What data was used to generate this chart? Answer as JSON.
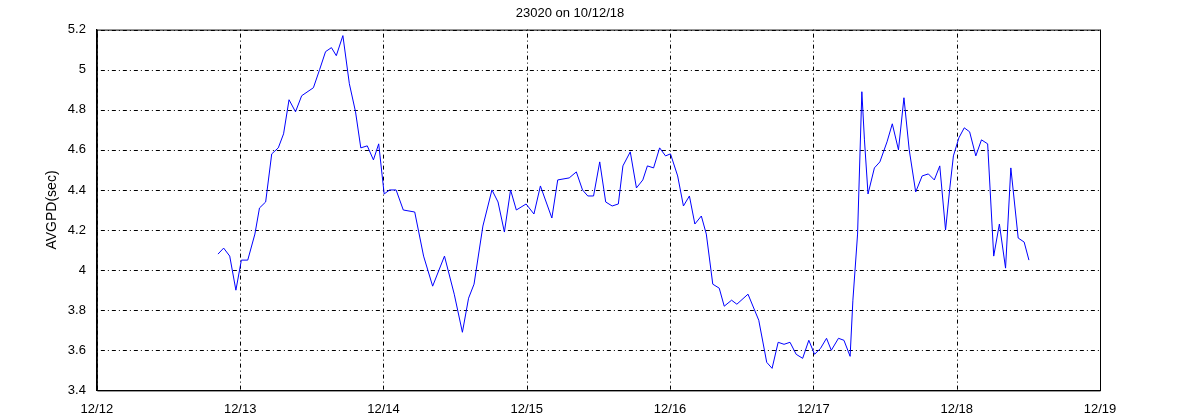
{
  "chart_data": {
    "type": "line",
    "title": "23020 on 10/12/18",
    "ylabel": "AVGPD(sec)",
    "xlim": [
      "--12-12",
      "--12-19"
    ],
    "xticks": [
      {
        "value": "--12-12",
        "label": "12/12"
      },
      {
        "value": "--12-13",
        "label": "12/13"
      },
      {
        "value": "--12-14",
        "label": "12/14"
      },
      {
        "value": "--12-15",
        "label": "12/15"
      },
      {
        "value": "--12-16",
        "label": "12/16"
      },
      {
        "value": "--12-17",
        "label": "12/17"
      },
      {
        "value": "--12-18",
        "label": "12/18"
      },
      {
        "value": "--12-19",
        "label": "12/19"
      }
    ],
    "ylim": [
      3.4,
      5.2
    ],
    "yticks": [
      3.4,
      3.6,
      3.8,
      4,
      4.2,
      4.4,
      4.6,
      4.8,
      5,
      5.2
    ],
    "grid": true,
    "marker": "none",
    "line_style": "solid",
    "series": [
      {
        "color": "#0000ff",
        "x": [
          "--12-12T20:17",
          "--12-12T21:14",
          "--12-12T22:15",
          "--12-12T23:17",
          "--12-13T00:12",
          "--12-13T01:16",
          "--12-13T02:28",
          "--12-13T03:14",
          "--12-13T04:16",
          "--12-13T05:17",
          "--12-13T06:23",
          "--12-13T07:16",
          "--12-13T08:11",
          "--12-13T09:16",
          "--12-13T10:18",
          "--12-13T12:16",
          "--12-13T13:18",
          "--12-13T14:18",
          "--12-13T15:17",
          "--12-13T16:06",
          "--12-13T17:12",
          "--12-13T18:17",
          "--12-13T19:19",
          "--12-13T20:12",
          "--12-13T21:17",
          "--12-13T22:19",
          "--12-13T23:12",
          "--12-14T00:07",
          "--12-14T01:02",
          "--12-14T02:07",
          "--12-14T03:19",
          "--12-14T05:14",
          "--12-14T06:43",
          "--12-14T08:14",
          "--12-14T10:13",
          "--12-14T11:51",
          "--12-14T13:13",
          "--12-14T14:15",
          "--12-14T15:10",
          "--12-14T16:39",
          "--12-14T18:10",
          "--12-14T19:11",
          "--12-14T20:15",
          "--12-14T21:17",
          "--12-14T22:15",
          "--12-14T23:53",
          "--12-15T01:12",
          "--12-15T02:17",
          "--12-15T04:12",
          "--12-15T05:11",
          "--12-15T07:06",
          "--12-15T08:18",
          "--12-15T09:20",
          "--12-15T10:13",
          "--12-15T11:11",
          "--12-15T12:13",
          "--12-15T13:13",
          "--12-15T14:18",
          "--12-15T15:20",
          "--12-15T16:06",
          "--12-15T17:20",
          "--12-15T18:22",
          "--12-15T19:26",
          "--12-15T20:12",
          "--12-15T21:14",
          "--12-15T22:15",
          "--12-15T23:14",
          "--12-16T00:04",
          "--12-16T01:16",
          "--12-16T02:14",
          "--12-16T03:14",
          "--12-16T04:09",
          "--12-16T05:14",
          "--12-16T06:04",
          "--12-16T07:09",
          "--12-16T08:14",
          "--12-16T09:04",
          "--12-16T10:18",
          "--12-16T11:11",
          "--12-16T13:03",
          "--12-16T14:51",
          "--12-16T16:11",
          "--12-16T17:05",
          "--12-16T18:06",
          "--12-16T19:05",
          "--12-16T20:05",
          "--12-16T21:07",
          "--12-16T22:12",
          "--12-16T23:14",
          "--12-17T00:12",
          "--12-17T01:12",
          "--12-17T02:12",
          "--12-17T03:00",
          "--12-17T04:12",
          "--12-17T05:07",
          "--12-17T06:09",
          "--12-17T06:37",
          "--12-17T07:24",
          "--12-17T08:07",
          "--12-17T08:33",
          "--12-17T09:09",
          "--12-17T10:13",
          "--12-17T11:08",
          "--12-17T12:20",
          "--12-17T13:13",
          "--12-17T14:15",
          "--12-17T15:10",
          "--12-17T16:03",
          "--12-17T17:08",
          "--12-17T18:13",
          "--12-17T19:15",
          "--12-17T20:15",
          "--12-17T21:10",
          "--12-17T22:08",
          "--12-17T22:51",
          "--12-17T23:27",
          "--12-18T00:22",
          "--12-18T01:16",
          "--12-18T02:10",
          "--12-18T03:12",
          "--12-18T04:09",
          "--12-18T05:11",
          "--12-18T06:12",
          "--12-18T07:09",
          "--12-18T08:11",
          "--12-18T09:04",
          "--12-18T10:18",
          "--12-18T11:18",
          "--12-18T12:06"
        ],
        "values": [
          4.08,
          4.11,
          4.07,
          3.9,
          4.05,
          4.05,
          4.18,
          4.31,
          4.34,
          4.58,
          4.61,
          4.68,
          4.85,
          4.79,
          4.87,
          4.91,
          5.0,
          5.09,
          5.11,
          5.07,
          5.17,
          4.93,
          4.79,
          4.61,
          4.62,
          4.55,
          4.63,
          4.38,
          4.4,
          4.4,
          4.3,
          4.29,
          4.07,
          3.92,
          4.07,
          3.88,
          3.69,
          3.86,
          3.93,
          4.22,
          4.4,
          4.34,
          4.19,
          4.4,
          4.3,
          4.33,
          4.28,
          4.42,
          4.26,
          4.45,
          4.46,
          4.49,
          4.4,
          4.37,
          4.37,
          4.54,
          4.34,
          4.32,
          4.33,
          4.52,
          4.59,
          4.41,
          4.45,
          4.52,
          4.51,
          4.61,
          4.57,
          4.58,
          4.47,
          4.32,
          4.37,
          4.23,
          4.27,
          4.18,
          3.93,
          3.91,
          3.82,
          3.85,
          3.83,
          3.88,
          3.75,
          3.54,
          3.51,
          3.64,
          3.63,
          3.64,
          3.58,
          3.56,
          3.65,
          3.58,
          3.61,
          3.66,
          3.6,
          3.66,
          3.65,
          3.57,
          3.85,
          4.18,
          4.89,
          4.65,
          4.38,
          4.51,
          4.54,
          4.64,
          4.73,
          4.6,
          4.86,
          4.6,
          4.39,
          4.47,
          4.48,
          4.45,
          4.52,
          4.2,
          4.41,
          4.57,
          4.66,
          4.71,
          4.69,
          4.57,
          4.65,
          4.63,
          4.07,
          4.23,
          4.01,
          4.51,
          4.16,
          4.14,
          4.05
        ]
      }
    ]
  }
}
